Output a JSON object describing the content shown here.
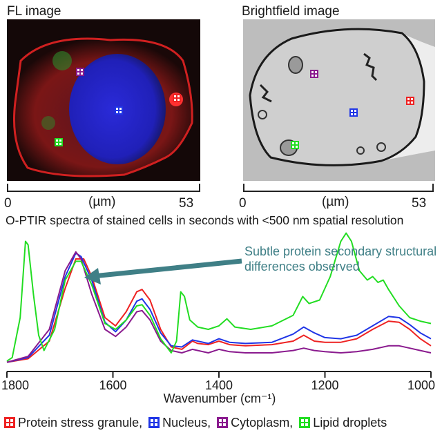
{
  "fl_panel": {
    "title": "FL image",
    "scale": {
      "start": "0",
      "unit": "(µm)",
      "end": "53"
    }
  },
  "bf_panel": {
    "title": "Brightfield image",
    "scale": {
      "start": "0",
      "unit": "(µm)",
      "end": "53"
    }
  },
  "headline": "O-PTIR spectra of stained cells in seconds with <500 nm spatial resolution",
  "annotation": {
    "line1": "Subtle protein secondary structural",
    "line2": "differences observed",
    "color": "#3f7f86"
  },
  "legend": [
    {
      "label": "Protein stress granule,",
      "color": "#ee2222"
    },
    {
      "label": "Nucleus,",
      "color": "#1f35e6"
    },
    {
      "label": "Cytoplasm,",
      "color": "#8a1a8e"
    },
    {
      "label": "Lipid droplets",
      "color": "#22dd22"
    }
  ],
  "chart_data": {
    "type": "line",
    "xlabel": "Wavenumber (cm⁻¹)",
    "xlim": [
      1800,
      1000
    ],
    "xticks": [
      "1800",
      "1600",
      "1400",
      "1200",
      "1000"
    ],
    "series": [
      {
        "name": "Protein stress granule",
        "color": "#ee2222",
        "points": [
          [
            1800,
            0.02
          ],
          [
            1760,
            0.05
          ],
          [
            1720,
            0.2
          ],
          [
            1690,
            0.65
          ],
          [
            1670,
            0.9
          ],
          [
            1655,
            0.9
          ],
          [
            1640,
            0.75
          ],
          [
            1615,
            0.4
          ],
          [
            1595,
            0.33
          ],
          [
            1575,
            0.45
          ],
          [
            1555,
            0.62
          ],
          [
            1545,
            0.64
          ],
          [
            1530,
            0.55
          ],
          [
            1510,
            0.3
          ],
          [
            1490,
            0.15
          ],
          [
            1470,
            0.13
          ],
          [
            1450,
            0.2
          ],
          [
            1440,
            0.18
          ],
          [
            1420,
            0.17
          ],
          [
            1400,
            0.2
          ],
          [
            1380,
            0.17
          ],
          [
            1350,
            0.16
          ],
          [
            1300,
            0.17
          ],
          [
            1260,
            0.2
          ],
          [
            1240,
            0.25
          ],
          [
            1220,
            0.2
          ],
          [
            1200,
            0.19
          ],
          [
            1170,
            0.19
          ],
          [
            1140,
            0.22
          ],
          [
            1110,
            0.3
          ],
          [
            1080,
            0.37
          ],
          [
            1060,
            0.36
          ],
          [
            1040,
            0.3
          ],
          [
            1020,
            0.22
          ],
          [
            1000,
            0.16
          ]
        ]
      },
      {
        "name": "Nucleus",
        "color": "#1f35e6",
        "points": [
          [
            1800,
            0.02
          ],
          [
            1760,
            0.06
          ],
          [
            1720,
            0.25
          ],
          [
            1690,
            0.75
          ],
          [
            1670,
            0.95
          ],
          [
            1660,
            0.92
          ],
          [
            1640,
            0.72
          ],
          [
            1615,
            0.36
          ],
          [
            1595,
            0.28
          ],
          [
            1575,
            0.38
          ],
          [
            1555,
            0.54
          ],
          [
            1545,
            0.56
          ],
          [
            1530,
            0.47
          ],
          [
            1510,
            0.27
          ],
          [
            1490,
            0.16
          ],
          [
            1470,
            0.15
          ],
          [
            1450,
            0.21
          ],
          [
            1420,
            0.18
          ],
          [
            1400,
            0.22
          ],
          [
            1380,
            0.19
          ],
          [
            1350,
            0.18
          ],
          [
            1300,
            0.19
          ],
          [
            1260,
            0.26
          ],
          [
            1240,
            0.32
          ],
          [
            1220,
            0.27
          ],
          [
            1200,
            0.23
          ],
          [
            1170,
            0.22
          ],
          [
            1140,
            0.25
          ],
          [
            1110,
            0.33
          ],
          [
            1080,
            0.41
          ],
          [
            1060,
            0.4
          ],
          [
            1040,
            0.34
          ],
          [
            1020,
            0.27
          ],
          [
            1000,
            0.22
          ]
        ]
      },
      {
        "name": "Cytoplasm",
        "color": "#8a1a8e",
        "points": [
          [
            1800,
            0.02
          ],
          [
            1760,
            0.07
          ],
          [
            1720,
            0.3
          ],
          [
            1690,
            0.8
          ],
          [
            1670,
            0.96
          ],
          [
            1660,
            0.9
          ],
          [
            1640,
            0.6
          ],
          [
            1615,
            0.3
          ],
          [
            1595,
            0.24
          ],
          [
            1575,
            0.32
          ],
          [
            1555,
            0.45
          ],
          [
            1545,
            0.46
          ],
          [
            1530,
            0.38
          ],
          [
            1510,
            0.2
          ],
          [
            1490,
            0.12
          ],
          [
            1470,
            0.1
          ],
          [
            1450,
            0.13
          ],
          [
            1420,
            0.1
          ],
          [
            1400,
            0.13
          ],
          [
            1380,
            0.11
          ],
          [
            1350,
            0.1
          ],
          [
            1300,
            0.1
          ],
          [
            1260,
            0.12
          ],
          [
            1240,
            0.14
          ],
          [
            1220,
            0.12
          ],
          [
            1200,
            0.11
          ],
          [
            1170,
            0.1
          ],
          [
            1140,
            0.11
          ],
          [
            1110,
            0.13
          ],
          [
            1080,
            0.16
          ],
          [
            1060,
            0.16
          ],
          [
            1040,
            0.14
          ],
          [
            1020,
            0.12
          ],
          [
            1000,
            0.1
          ]
        ]
      },
      {
        "name": "Lipid droplets",
        "color": "#22dd22",
        "points": [
          [
            1800,
            0.03
          ],
          [
            1790,
            0.06
          ],
          [
            1775,
            0.4
          ],
          [
            1765,
            1.05
          ],
          [
            1760,
            1.02
          ],
          [
            1750,
            0.6
          ],
          [
            1740,
            0.25
          ],
          [
            1730,
            0.12
          ],
          [
            1710,
            0.3
          ],
          [
            1690,
            0.72
          ],
          [
            1670,
            0.88
          ],
          [
            1660,
            0.88
          ],
          [
            1640,
            0.68
          ],
          [
            1615,
            0.35
          ],
          [
            1595,
            0.3
          ],
          [
            1575,
            0.38
          ],
          [
            1555,
            0.5
          ],
          [
            1545,
            0.51
          ],
          [
            1530,
            0.42
          ],
          [
            1510,
            0.22
          ],
          [
            1490,
            0.1
          ],
          [
            1480,
            0.2
          ],
          [
            1472,
            0.62
          ],
          [
            1465,
            0.58
          ],
          [
            1455,
            0.38
          ],
          [
            1440,
            0.32
          ],
          [
            1420,
            0.3
          ],
          [
            1400,
            0.33
          ],
          [
            1385,
            0.39
          ],
          [
            1370,
            0.32
          ],
          [
            1340,
            0.3
          ],
          [
            1300,
            0.33
          ],
          [
            1260,
            0.42
          ],
          [
            1242,
            0.58
          ],
          [
            1230,
            0.52
          ],
          [
            1210,
            0.55
          ],
          [
            1190,
            0.75
          ],
          [
            1170,
            1.05
          ],
          [
            1160,
            1.12
          ],
          [
            1150,
            1.05
          ],
          [
            1135,
            0.8
          ],
          [
            1120,
            0.72
          ],
          [
            1110,
            0.75
          ],
          [
            1100,
            0.7
          ],
          [
            1090,
            0.72
          ],
          [
            1080,
            0.64
          ],
          [
            1060,
            0.5
          ],
          [
            1040,
            0.4
          ],
          [
            1020,
            0.37
          ],
          [
            1000,
            0.35
          ]
        ]
      }
    ]
  }
}
